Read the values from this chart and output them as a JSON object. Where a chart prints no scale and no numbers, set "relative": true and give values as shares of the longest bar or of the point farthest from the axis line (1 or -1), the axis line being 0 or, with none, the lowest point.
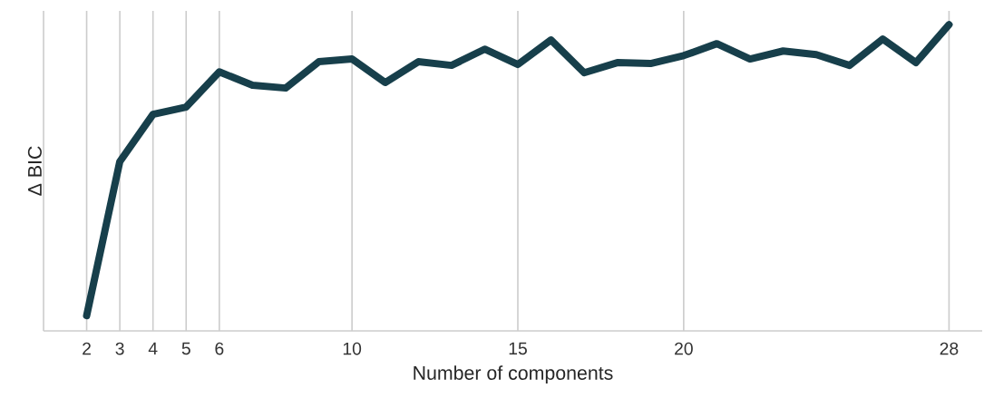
{
  "chart_data": {
    "type": "line",
    "relative": true,
    "xlabel": "Number of components",
    "ylabel": "Δ BIC",
    "color": "#173f4b",
    "grid": "x",
    "x": [
      2,
      3,
      4,
      5,
      6,
      7,
      8,
      9,
      10,
      11,
      12,
      13,
      14,
      15,
      16,
      17,
      18,
      19,
      20,
      21,
      22,
      23,
      24,
      25,
      26,
      27,
      28
    ],
    "values": [
      0.05,
      0.553,
      0.707,
      0.731,
      0.846,
      0.802,
      0.793,
      0.879,
      0.888,
      0.811,
      0.879,
      0.867,
      0.92,
      0.87,
      0.95,
      0.843,
      0.876,
      0.873,
      0.899,
      0.938,
      0.888,
      0.914,
      0.902,
      0.867,
      0.953,
      0.876,
      1.0
    ],
    "xlim": [
      0.7,
      29
    ],
    "xticks": [
      2,
      3,
      4,
      5,
      6,
      10,
      15,
      20,
      28
    ]
  }
}
